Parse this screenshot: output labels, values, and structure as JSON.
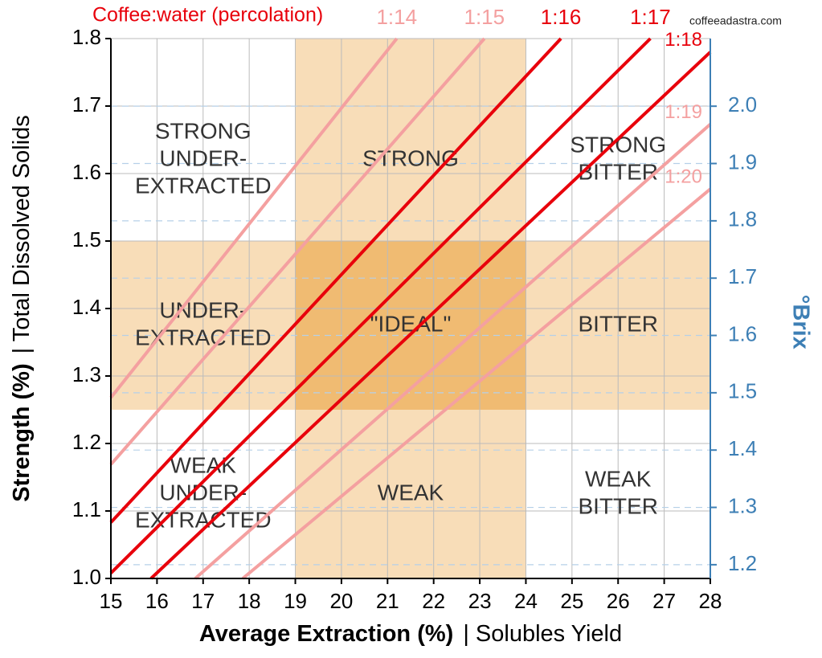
{
  "chart_data": {
    "type": "line",
    "title": "Coffee:water (percolation)",
    "watermark": "coffeeadastra.com",
    "x_label": "Average Extraction (%)",
    "x_label_suffix": "| Solubles Yield",
    "y_label": "Strength (%)",
    "y_label_suffix": "| Total Dissolved Solids",
    "y2_label": "°Brix",
    "xlim": [
      15,
      28
    ],
    "xticks": [
      15,
      16,
      17,
      18,
      19,
      20,
      21,
      22,
      23,
      24,
      25,
      26,
      27,
      28
    ],
    "ylim": [
      1.0,
      1.8
    ],
    "yticks": [
      {
        "value": 1,
        "label": "1.0"
      },
      1.1,
      1.2,
      1.3,
      1.4,
      1.5,
      1.6,
      1.7,
      1.8
    ],
    "y2lim": [
      1.176,
      2.118
    ],
    "y2ticks": [
      1.2,
      1.3,
      1.4,
      1.5,
      1.6,
      1.7,
      1.8,
      1.9,
      {
        "value": 2,
        "label": "2.0"
      }
    ],
    "grid": true,
    "ideal_extraction": [
      19,
      24
    ],
    "ideal_strength": [
      1.25,
      1.5
    ],
    "zone_color": "#f8ddb8",
    "ideal_color": "#f0bb72",
    "y2_color": "#3d7fb5",
    "zone_labels": [
      [
        "STRONG",
        "UNDER-",
        "EXTRACTED"
      ],
      [
        "STRONG"
      ],
      [
        "STRONG",
        "BITTER"
      ],
      [
        "UNDER-",
        "EXTRACTED"
      ],
      [
        "\"IDEAL\""
      ],
      [
        "BITTER"
      ],
      [
        "WEAK",
        "UNDER-",
        "EXTRACTED"
      ],
      [
        "WEAK"
      ],
      [
        "WEAK",
        "BITTER"
      ]
    ],
    "series": [
      {
        "name": "1:14",
        "color": "#f4a0a0",
        "x": [
          15,
          21.2
        ],
        "values": [
          1.268,
          1.8
        ]
      },
      {
        "name": "1:15",
        "color": "#f4a0a0",
        "x": [
          15,
          23.1
        ],
        "values": [
          1.169,
          1.8
        ]
      },
      {
        "name": "1:16",
        "color": "#e8000b",
        "x": [
          15,
          24.76
        ],
        "values": [
          1.083,
          1.8
        ]
      },
      {
        "name": "1:17",
        "color": "#e8000b",
        "x": [
          15,
          26.7
        ],
        "values": [
          1.008,
          1.8
        ]
      },
      {
        "name": "1:18",
        "color": "#e8000b",
        "x": [
          15.87,
          28
        ],
        "values": [
          1.0,
          1.78
        ]
      },
      {
        "name": "1:19",
        "color": "#f4a0a0",
        "x": [
          16.83,
          28
        ],
        "values": [
          1.0,
          1.673
        ]
      },
      {
        "name": "1:20",
        "color": "#f4a0a0",
        "x": [
          17.86,
          28
        ],
        "values": [
          1.0,
          1.577
        ]
      }
    ]
  }
}
